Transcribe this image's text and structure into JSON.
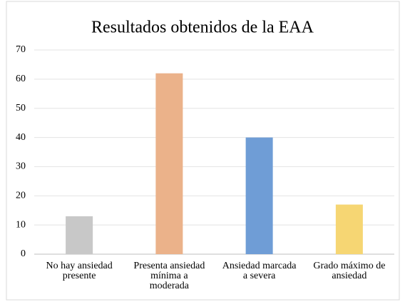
{
  "chart_data": {
    "type": "bar",
    "title": "Resultados obtenidos de la EAA",
    "categories": [
      "No hay ansiedad\npresente",
      "Presenta ansiedad\nmínima a\nmoderada",
      "Ansiedad marcada\na severa",
      "Grado máximo de\nansiedad"
    ],
    "values": [
      13,
      62,
      40,
      17
    ],
    "colors": [
      "#c8c8c8",
      "#ebb28a",
      "#6f9dd6",
      "#f6d673"
    ],
    "ylim": [
      0,
      70
    ],
    "yticks": [
      0,
      10,
      20,
      30,
      40,
      50,
      60,
      70
    ],
    "grid": true
  }
}
